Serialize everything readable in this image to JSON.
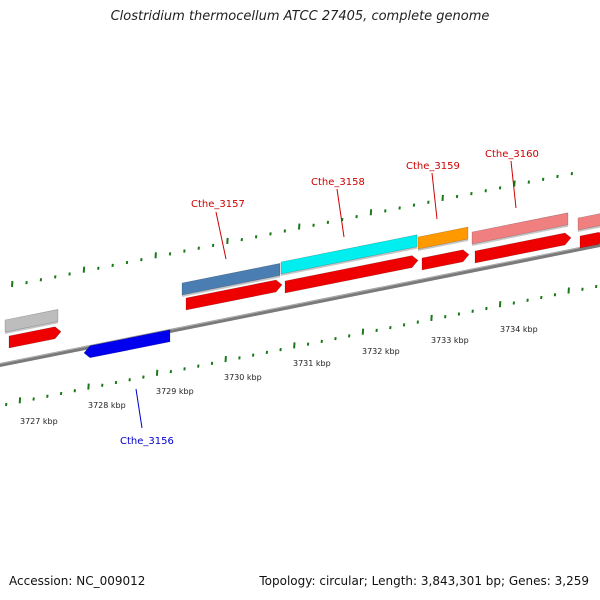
{
  "title": "Clostridium thermocellum ATCC 27405, complete genome",
  "footer": {
    "accession": "Accession: NC_009012",
    "stats": "Topology: circular; Length: 3,843,301 bp; Genes: 3,259"
  },
  "ticks": [
    "3727 kbp",
    "3728 kbp",
    "3729 kbp",
    "3730 kbp",
    "3731 kbp",
    "3732 kbp",
    "3733 kbp",
    "3734 kbp"
  ],
  "genes": [
    {
      "label": "Cthe_3156",
      "color": "#0000ee",
      "strand": "reverse"
    },
    {
      "label": "Cthe_3157",
      "color": "#4a7eb2",
      "strand": "forward"
    },
    {
      "label": "Cthe_3158",
      "color": "#00eeee",
      "strand": "forward"
    },
    {
      "label": "Cthe_3159",
      "color": "#ff9900",
      "strand": "forward"
    },
    {
      "label": "Cthe_3160",
      "color": "#f08080",
      "strand": "forward"
    }
  ],
  "colors": {
    "label_forward": "#cc0000",
    "label_reverse": "#0000cc",
    "cds": "#ee0000",
    "backbone": "#7a7a7a",
    "tick": "#1a7a1a",
    "unlabeled_gene": "#bdbdbd"
  }
}
